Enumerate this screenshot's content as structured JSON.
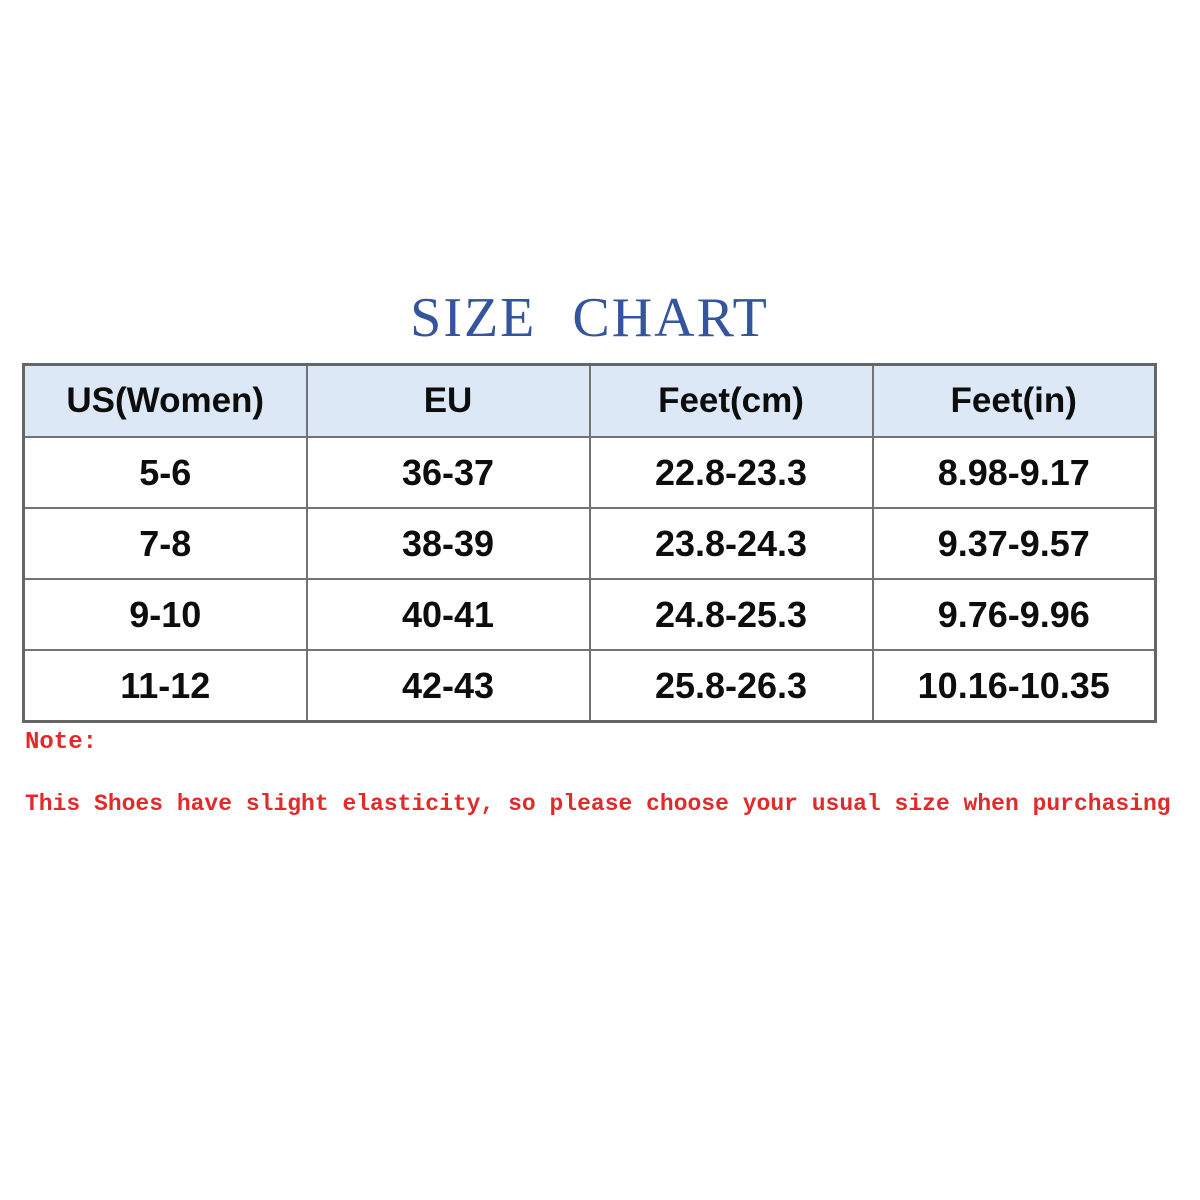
{
  "page": {
    "title": "SIZE CHART",
    "title_color": "#34549E",
    "background_color": "#FFFFFF"
  },
  "size_chart": {
    "header_bg_color": "#DCE8F5",
    "border_color": "#737373",
    "columns": [
      "US(Women)",
      "EU",
      "Feet(cm)",
      "Feet(in)"
    ],
    "rows": [
      [
        "5-6",
        "36-37",
        "22.8-23.3",
        "8.98-9.17"
      ],
      [
        "7-8",
        "38-39",
        "23.8-24.3",
        "9.37-9.57"
      ],
      [
        "9-10",
        "40-41",
        "24.8-25.3",
        "9.76-9.96"
      ],
      [
        "11-12",
        "42-43",
        "25.8-26.3",
        "10.16-10.35"
      ]
    ]
  },
  "note": {
    "label": "Note:",
    "text": "This Shoes have slight elasticity, so please choose your usual size when purchasing",
    "color": "#E12A2A"
  }
}
